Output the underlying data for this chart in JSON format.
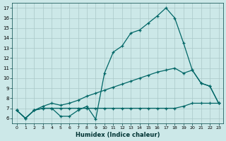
{
  "xlabel": "Humidex (Indice chaleur)",
  "ylabel": "",
  "bg_color": "#cce8e8",
  "grid_color": "#aac8c8",
  "line_color": "#006666",
  "xlim": [
    -0.5,
    23.5
  ],
  "ylim": [
    5.5,
    17.5
  ],
  "xticks": [
    0,
    1,
    2,
    3,
    4,
    5,
    6,
    7,
    8,
    9,
    10,
    11,
    12,
    13,
    14,
    15,
    16,
    17,
    18,
    19,
    20,
    21,
    22,
    23
  ],
  "yticks": [
    6,
    7,
    8,
    9,
    10,
    11,
    12,
    13,
    14,
    15,
    16,
    17
  ],
  "series1_x": [
    0,
    1,
    2,
    3,
    4,
    5,
    6,
    7,
    8,
    9,
    10,
    11,
    12,
    13,
    14,
    15,
    16,
    17,
    18,
    19,
    20,
    21,
    22,
    23
  ],
  "series1_y": [
    6.8,
    6.0,
    6.8,
    7.0,
    7.0,
    6.2,
    6.2,
    6.8,
    7.2,
    5.9,
    10.5,
    12.6,
    13.2,
    14.5,
    14.8,
    15.5,
    16.2,
    17.0,
    16.0,
    13.5,
    10.8,
    9.5,
    9.2,
    7.5
  ],
  "series2_x": [
    0,
    1,
    2,
    3,
    4,
    5,
    6,
    7,
    8,
    9,
    10,
    11,
    12,
    13,
    14,
    15,
    16,
    17,
    18,
    19,
    20,
    21,
    22,
    23
  ],
  "series2_y": [
    6.8,
    6.0,
    6.8,
    7.2,
    7.5,
    7.3,
    7.5,
    7.8,
    8.2,
    8.5,
    8.8,
    9.1,
    9.4,
    9.7,
    10.0,
    10.3,
    10.6,
    10.8,
    11.0,
    10.5,
    10.8,
    9.5,
    9.2,
    7.5
  ],
  "series3_x": [
    0,
    1,
    2,
    3,
    4,
    5,
    6,
    7,
    8,
    9,
    10,
    11,
    12,
    13,
    14,
    15,
    16,
    17,
    18,
    19,
    20,
    21,
    22,
    23
  ],
  "series3_y": [
    6.8,
    6.0,
    6.8,
    7.0,
    7.0,
    7.0,
    7.0,
    7.0,
    7.0,
    7.0,
    7.0,
    7.0,
    7.0,
    7.0,
    7.0,
    7.0,
    7.0,
    7.0,
    7.0,
    7.2,
    7.5,
    7.5,
    7.5,
    7.5
  ]
}
